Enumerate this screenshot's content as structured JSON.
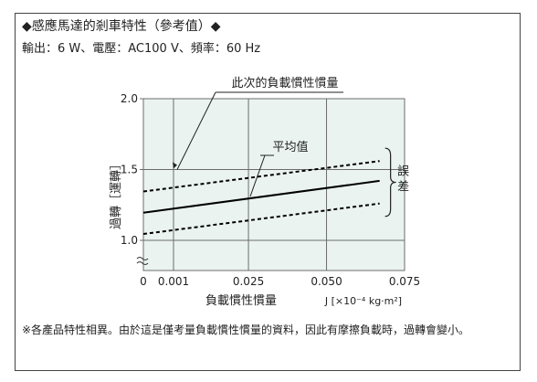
{
  "title": "◆感應馬達的剎車特性（參考值）◆",
  "subtitle": "輸出：6 W、電壓：AC100 V、頻率：60 Hz",
  "footnote": "※各產品特性相異。由於這是僅考量負載慣性慣量的資料，因此有摩擦負載時，過轉會變小。",
  "colors": {
    "plot_bg": "#eaf3f0",
    "grid": "#6c6c6c",
    "line": "#000000"
  },
  "chart_data": {
    "type": "line",
    "title": "",
    "xlabel": "負載慣性慣量",
    "xunit": "J [×10⁻⁴ kg·m²]",
    "ylabel": "過轉［運轉］",
    "xlim": [
      0,
      0.075
    ],
    "ylim": [
      1.0,
      2.0
    ],
    "x_ticks": [
      {
        "value": 0.001,
        "label": "0.001"
      },
      {
        "value": 0.025,
        "label": "0.025"
      },
      {
        "value": 0.05,
        "label": "0.050"
      },
      {
        "value": 0.075,
        "label": "0.075"
      }
    ],
    "x_zero_label": "0",
    "y_ticks": [
      {
        "value": 1.0,
        "label": "1.0"
      },
      {
        "value": 1.5,
        "label": "1.5"
      },
      {
        "value": 2.0,
        "label": "2.0"
      }
    ],
    "series": [
      {
        "name": "平均值",
        "style": "solid",
        "x": [
          0,
          0.067
        ],
        "y": [
          1.195,
          1.42
        ]
      },
      {
        "name": "",
        "style": "dashed",
        "x": [
          0,
          0.067
        ],
        "y": [
          1.345,
          1.56
        ]
      },
      {
        "name": "",
        "style": "dashed",
        "x": [
          0,
          0.067
        ],
        "y": [
          1.045,
          1.26
        ]
      }
    ],
    "annotations": {
      "inertia_label": "此次的負載慣性慣量",
      "inertia_x": 0.01,
      "inertia_y": 1.5,
      "average_label": "平均值",
      "error_label": "誤差"
    }
  }
}
